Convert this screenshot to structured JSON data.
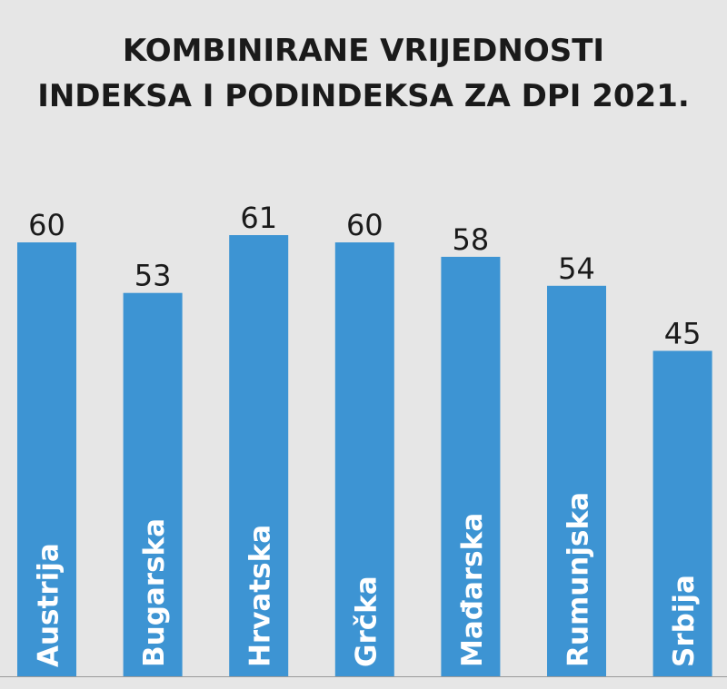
{
  "chart_data": {
    "type": "bar",
    "title_lines": [
      "KOMBINIRANE VRIJEDNOSTI",
      "INDEKSA  I PODINDEKSA ZA DPI 2021."
    ],
    "xlabel": "",
    "ylabel": "",
    "categories": [
      "Austrija",
      "Bugarska",
      "Hrvatska",
      "Grčka",
      "Mađarska",
      "Rumunjska",
      "Srbija"
    ],
    "values": [
      60,
      53,
      61,
      60,
      58,
      54,
      45
    ],
    "data_labels": [
      "60",
      "53",
      "61",
      "60",
      "58",
      "54",
      "45"
    ],
    "ylim": [
      0,
      61
    ],
    "grid": false,
    "legend": "none",
    "bar_color": "#3d94d3",
    "label_color": "#ffffff",
    "value_label_color": "#1a1a1a",
    "background_color": "#e6e6e6"
  }
}
